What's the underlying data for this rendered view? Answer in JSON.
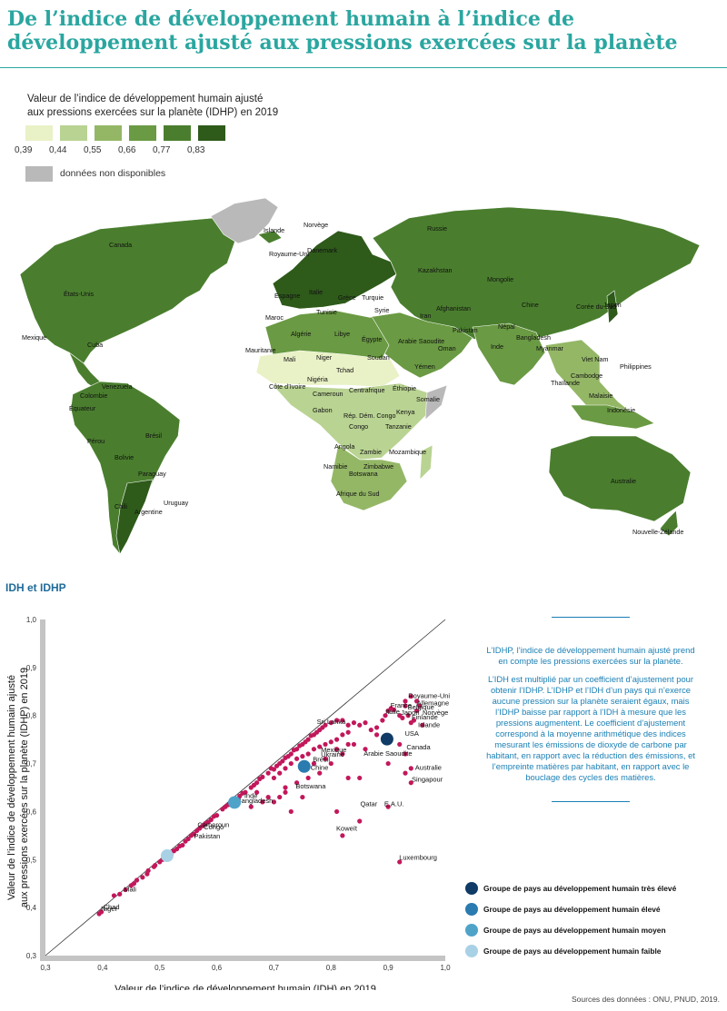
{
  "title": "De l’indice de développement humain à l’indice de développement ajusté aux pressions exercées sur la planète",
  "map_legend": {
    "title_line1": "Valeur de l’indice de développement humain ajusté",
    "title_line2": "aux pressions exercées sur la planète (IDHP) en 2019",
    "colors": [
      "#e9f1c6",
      "#b9d392",
      "#94b766",
      "#6a9a43",
      "#4a7e2e",
      "#2e5a1a"
    ],
    "ticks": [
      "0,39",
      "0,44",
      "0,55",
      "0,66",
      "0,77",
      "0,83"
    ],
    "nodata_label": "données non disponibles",
    "nodata_color": "#b9b9b9"
  },
  "map_labels": [
    "Canada",
    "États-Unis",
    "Mexique",
    "Cuba",
    "Venezuela",
    "Colombie",
    "Équateur",
    "Pérou",
    "Brésil",
    "Bolivie",
    "Paraguay",
    "Chili",
    "Argentine",
    "Uruguay",
    "Islande",
    "Norvège",
    "Royaume-Uni",
    "Danemark",
    "Espagne",
    "Italie",
    "Grèce",
    "Turquie",
    "Tunisie",
    "Maroc",
    "Algérie",
    "Libye",
    "Égypte",
    "Syrie",
    "Iran",
    "Afghanistan",
    "Pakistan",
    "Inde",
    "Népal",
    "Bangladesh",
    "Myanmar",
    "Russie",
    "Kazakhstan",
    "Mongolie",
    "Chine",
    "Corée du Sud",
    "Japon",
    "Viet Nam",
    "Philippines",
    "Cambodge",
    "Thaïlande",
    "Malaisie",
    "Indonésie",
    "Mauritanie",
    "Mali",
    "Niger",
    "Tchad",
    "Soudan",
    "Arabie Saoudite",
    "Oman",
    "Yémen",
    "Éthiopie",
    "Somalie",
    "Nigéria",
    "Côte d’Ivoire",
    "Centrafrique",
    "Cameroun",
    "Gabon",
    "Rép. Dém. Congo",
    "Congo",
    "Kenya",
    "Tanzanie",
    "Angola",
    "Zambie",
    "Mozambique",
    "Namibie",
    "Zimbabwe",
    "Botswana",
    "Afrique du Sud",
    "Australie",
    "Nouvelle-Zélande"
  ],
  "section_title": "IDH et IDHP",
  "chart_data": {
    "type": "scatter",
    "xlabel": "Valeur de l’indice de développement humain (IDH) en 2019",
    "ylabel_line1": "Valeur de l’indice de développement humain ajusté",
    "ylabel_line2": "aux pressions exercées sur la planète (IDHP) en 2019",
    "xlim": [
      0.3,
      1.0
    ],
    "ylim": [
      0.3,
      1.0
    ],
    "xticks": [
      "0,3",
      "0,4",
      "0,5",
      "0,6",
      "0,7",
      "0,8",
      "0,9",
      "1,0"
    ],
    "yticks": [
      "0,3",
      "0,4",
      "0,5",
      "0,6",
      "0,7",
      "0,8",
      "0,9",
      "1,0"
    ],
    "reference_line": "y = x",
    "point_color": "#c2185b",
    "points": [
      [
        0.398,
        0.391
      ],
      [
        0.394,
        0.387
      ],
      [
        0.42,
        0.425
      ],
      [
        0.43,
        0.428
      ],
      [
        0.44,
        0.437
      ],
      [
        0.45,
        0.446
      ],
      [
        0.455,
        0.45
      ],
      [
        0.46,
        0.457
      ],
      [
        0.47,
        0.463
      ],
      [
        0.478,
        0.47
      ],
      [
        0.48,
        0.477
      ],
      [
        0.49,
        0.485
      ],
      [
        0.492,
        0.488
      ],
      [
        0.5,
        0.495
      ],
      [
        0.505,
        0.5
      ],
      [
        0.51,
        0.505
      ],
      [
        0.52,
        0.51
      ],
      [
        0.525,
        0.518
      ],
      [
        0.53,
        0.522
      ],
      [
        0.535,
        0.528
      ],
      [
        0.54,
        0.53
      ],
      [
        0.545,
        0.538
      ],
      [
        0.55,
        0.543
      ],
      [
        0.555,
        0.55
      ],
      [
        0.56,
        0.553
      ],
      [
        0.565,
        0.56
      ],
      [
        0.57,
        0.565
      ],
      [
        0.575,
        0.57
      ],
      [
        0.58,
        0.575
      ],
      [
        0.585,
        0.578
      ],
      [
        0.59,
        0.583
      ],
      [
        0.595,
        0.59
      ],
      [
        0.6,
        0.592
      ],
      [
        0.61,
        0.605
      ],
      [
        0.615,
        0.61
      ],
      [
        0.62,
        0.614
      ],
      [
        0.63,
        0.62
      ],
      [
        0.64,
        0.632
      ],
      [
        0.645,
        0.638
      ],
      [
        0.65,
        0.64
      ],
      [
        0.66,
        0.65
      ],
      [
        0.665,
        0.655
      ],
      [
        0.67,
        0.66
      ],
      [
        0.675,
        0.668
      ],
      [
        0.68,
        0.672
      ],
      [
        0.69,
        0.68
      ],
      [
        0.695,
        0.69
      ],
      [
        0.7,
        0.688
      ],
      [
        0.705,
        0.695
      ],
      [
        0.71,
        0.7
      ],
      [
        0.715,
        0.705
      ],
      [
        0.72,
        0.712
      ],
      [
        0.725,
        0.715
      ],
      [
        0.73,
        0.72
      ],
      [
        0.735,
        0.728
      ],
      [
        0.74,
        0.73
      ],
      [
        0.745,
        0.737
      ],
      [
        0.75,
        0.74
      ],
      [
        0.755,
        0.745
      ],
      [
        0.76,
        0.75
      ],
      [
        0.765,
        0.758
      ],
      [
        0.77,
        0.76
      ],
      [
        0.775,
        0.765
      ],
      [
        0.78,
        0.77
      ],
      [
        0.785,
        0.775
      ],
      [
        0.79,
        0.78
      ],
      [
        0.8,
        0.785
      ],
      [
        0.81,
        0.79
      ],
      [
        0.82,
        0.79
      ],
      [
        0.83,
        0.78
      ],
      [
        0.84,
        0.785
      ],
      [
        0.85,
        0.78
      ],
      [
        0.86,
        0.785
      ],
      [
        0.87,
        0.77
      ],
      [
        0.88,
        0.775
      ],
      [
        0.89,
        0.79
      ],
      [
        0.895,
        0.8
      ],
      [
        0.9,
        0.81
      ],
      [
        0.905,
        0.815
      ],
      [
        0.91,
        0.812
      ],
      [
        0.92,
        0.8
      ],
      [
        0.925,
        0.795
      ],
      [
        0.93,
        0.82
      ],
      [
        0.935,
        0.8
      ],
      [
        0.94,
        0.785
      ],
      [
        0.945,
        0.79
      ],
      [
        0.95,
        0.81
      ],
      [
        0.955,
        0.82
      ],
      [
        0.96,
        0.78
      ],
      [
        0.93,
        0.83
      ],
      [
        0.94,
        0.84
      ],
      [
        0.95,
        0.83
      ],
      [
        0.7,
        0.67
      ],
      [
        0.71,
        0.68
      ],
      [
        0.72,
        0.69
      ],
      [
        0.73,
        0.7
      ],
      [
        0.74,
        0.71
      ],
      [
        0.75,
        0.715
      ],
      [
        0.76,
        0.72
      ],
      [
        0.77,
        0.73
      ],
      [
        0.78,
        0.735
      ],
      [
        0.79,
        0.74
      ],
      [
        0.8,
        0.745
      ],
      [
        0.81,
        0.75
      ],
      [
        0.82,
        0.76
      ],
      [
        0.83,
        0.765
      ],
      [
        0.72,
        0.65
      ],
      [
        0.74,
        0.66
      ],
      [
        0.76,
        0.67
      ],
      [
        0.78,
        0.68
      ],
      [
        0.8,
        0.7
      ],
      [
        0.82,
        0.72
      ],
      [
        0.84,
        0.74
      ],
      [
        0.86,
        0.73
      ],
      [
        0.88,
        0.76
      ],
      [
        0.72,
        0.64
      ],
      [
        0.75,
        0.63
      ],
      [
        0.73,
        0.6
      ],
      [
        0.83,
        0.67
      ],
      [
        0.85,
        0.67
      ],
      [
        0.9,
        0.7
      ],
      [
        0.92,
        0.74
      ],
      [
        0.93,
        0.72
      ],
      [
        0.94,
        0.69
      ],
      [
        0.93,
        0.68
      ],
      [
        0.94,
        0.66
      ],
      [
        0.81,
        0.6
      ],
      [
        0.85,
        0.58
      ],
      [
        0.9,
        0.61
      ],
      [
        0.82,
        0.55
      ],
      [
        0.92,
        0.495
      ],
      [
        0.67,
        0.64
      ],
      [
        0.68,
        0.62
      ],
      [
        0.69,
        0.63
      ],
      [
        0.66,
        0.61
      ],
      [
        0.7,
        0.62
      ],
      [
        0.71,
        0.63
      ],
      [
        0.75,
        0.69
      ],
      [
        0.77,
        0.7
      ],
      [
        0.79,
        0.71
      ],
      [
        0.81,
        0.73
      ],
      [
        0.83,
        0.74
      ]
    ],
    "labels": [
      {
        "text": "Royaume-Uni",
        "x": 0.932,
        "y": 0.831
      },
      {
        "text": "Allemagne",
        "x": 0.947,
        "y": 0.816
      },
      {
        "text": "France",
        "x": 0.901,
        "y": 0.811
      },
      {
        "text": "Italie",
        "x": 0.892,
        "y": 0.798
      },
      {
        "text": "Belgique",
        "x": 0.931,
        "y": 0.807
      },
      {
        "text": "Japon",
        "x": 0.919,
        "y": 0.796
      },
      {
        "text": "Norvège",
        "x": 0.957,
        "y": 0.796
      },
      {
        "text": "Finlande",
        "x": 0.938,
        "y": 0.786
      },
      {
        "text": "Islande",
        "x": 0.949,
        "y": 0.77
      },
      {
        "text": "Sri Lanka",
        "x": 0.772,
        "y": 0.777
      },
      {
        "text": "Mexique",
        "x": 0.779,
        "y": 0.718
      },
      {
        "text": "Ukraine",
        "x": 0.779,
        "y": 0.709
      },
      {
        "text": "Brésil",
        "x": 0.765,
        "y": 0.698
      },
      {
        "text": "Arabie Saoudite",
        "x": 0.854,
        "y": 0.711
      },
      {
        "text": "Chine",
        "x": 0.761,
        "y": 0.681
      },
      {
        "text": "Botswana",
        "x": 0.735,
        "y": 0.642
      },
      {
        "text": "Inde",
        "x": 0.645,
        "y": 0.623
      },
      {
        "text": "Bangladesh",
        "x": 0.632,
        "y": 0.612
      },
      {
        "text": "Canada",
        "x": 0.929,
        "y": 0.724
      },
      {
        "text": "USA",
        "x": 0.926,
        "y": 0.752
      },
      {
        "text": "Australie",
        "x": 0.944,
        "y": 0.681
      },
      {
        "text": "Singapour",
        "x": 0.938,
        "y": 0.657
      },
      {
        "text": "Qatar",
        "x": 0.848,
        "y": 0.606
      },
      {
        "text": "E.A.U.",
        "x": 0.89,
        "y": 0.606
      },
      {
        "text": "Koweït",
        "x": 0.806,
        "y": 0.554
      },
      {
        "text": "Luxembourg",
        "x": 0.916,
        "y": 0.494
      },
      {
        "text": "Cameroun",
        "x": 0.563,
        "y": 0.562
      },
      {
        "text": "Congo",
        "x": 0.574,
        "y": 0.557
      },
      {
        "text": "Pakistan",
        "x": 0.557,
        "y": 0.538
      },
      {
        "text": "Chad",
        "x": 0.398,
        "y": 0.391
      },
      {
        "text": "Mali",
        "x": 0.434,
        "y": 0.428
      },
      {
        "text": "Niger",
        "x": 0.394,
        "y": 0.387
      }
    ],
    "groups": [
      {
        "name": "Groupe de pays au développement humain très élevé",
        "x": 0.898,
        "y": 0.751,
        "color": "#0f3b66"
      },
      {
        "name": "Groupe de pays au développement humain élevé",
        "x": 0.753,
        "y": 0.694,
        "color": "#2a7bb0"
      },
      {
        "name": "Groupe de pays au développement humain moyen",
        "x": 0.631,
        "y": 0.619,
        "color": "#4fa3c9"
      },
      {
        "name": "Groupe de pays au développement humain faible",
        "x": 0.513,
        "y": 0.508,
        "color": "#a9d1e6"
      }
    ]
  },
  "side_text": {
    "p1": "L’IDHP, l’indice de développement humain ajusté prend en compte les pressions exercées sur la planète.",
    "p2": "L’IDH est multiplié par un coefficient d’ajustement pour obtenir l’IDHP. L’IDHP et l’IDH d’un pays qui n’exerce aucune pression sur la planète seraient égaux, mais l’IDHP baisse par rapport à l’IDH à mesure que les pressions augmentent. Le coefficient d’ajustement correspond à la moyenne arithmétique des indices mesurant les émissions de dioxyde de carbone par habitant, en rapport avec la réduction des émissions, et l’empreinte matières par habitant, en rapport avec le bouclage des cycles des matières."
  },
  "source": "Sources des données :  ONU, PNUD, 2019."
}
